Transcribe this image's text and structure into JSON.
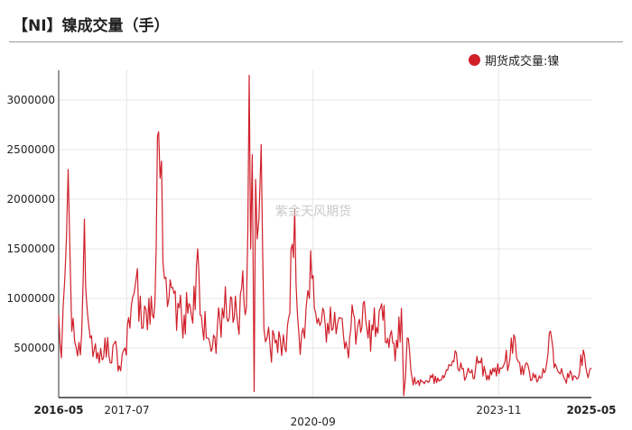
{
  "title": "【NI】镍成交量（手）",
  "watermark": "紫金天风期货",
  "colors": {
    "series": "#d0202a",
    "grid": "#e6e6e6",
    "axis": "#333333"
  },
  "chart_data": {
    "type": "line",
    "xlabel": "",
    "ylabel": "",
    "legend_position": "top-right",
    "grid": true,
    "xlim": [
      "2016-05-03",
      "2025-05-30"
    ],
    "ylim": [
      0,
      3300000
    ],
    "yticks": [
      500000,
      1000000,
      1500000,
      2000000,
      2500000,
      3000000
    ],
    "ytick_labels": [
      "500000",
      "1000000",
      "1500000",
      "2000000",
      "2500000",
      "3000000"
    ],
    "xticks": [
      {
        "date": "2016-05-03",
        "label": "2016-05",
        "bold": true,
        "row": 1
      },
      {
        "date": "2017-07-01",
        "label": "2017-07",
        "bold": false,
        "row": 1
      },
      {
        "date": "2020-09-01",
        "label": "2020-09",
        "bold": false,
        "row": 2
      },
      {
        "date": "2023-11-01",
        "label": "2023-11",
        "bold": false,
        "row": 1
      },
      {
        "date": "2025-05-30",
        "label": "2025-05",
        "bold": true,
        "row": 1
      }
    ],
    "series": [
      {
        "name": "期货成交量:镍",
        "x": [
          "2016-05-03",
          "2016-05-20",
          "2016-06-10",
          "2016-07-01",
          "2016-07-15",
          "2016-08-01",
          "2016-08-20",
          "2016-09-15",
          "2016-10-10",
          "2016-11-01",
          "2016-11-15",
          "2016-12-10",
          "2017-01-10",
          "2017-02-15",
          "2017-03-20",
          "2017-04-15",
          "2017-05-15",
          "2017-06-20",
          "2017-07-20",
          "2017-08-15",
          "2017-09-05",
          "2017-10-10",
          "2017-11-15",
          "2017-12-15",
          "2018-01-15",
          "2018-02-20",
          "2018-03-20",
          "2018-04-20",
          "2018-05-15",
          "2018-06-15",
          "2018-07-15",
          "2018-08-15",
          "2018-09-15",
          "2018-10-15",
          "2018-11-15",
          "2018-12-15",
          "2019-01-15",
          "2019-02-15",
          "2019-03-15",
          "2019-04-15",
          "2019-05-15",
          "2019-06-15",
          "2019-07-15",
          "2019-08-01",
          "2019-08-10",
          "2019-08-20",
          "2019-09-01",
          "2019-09-10",
          "2019-09-20",
          "2019-10-01",
          "2019-10-15",
          "2019-11-01",
          "2019-11-20",
          "2019-12-10",
          "2020-01-10",
          "2020-02-10",
          "2020-03-10",
          "2020-04-10",
          "2020-05-10",
          "2020-06-05",
          "2020-07-01",
          "2020-07-20",
          "2020-08-10",
          "2020-08-25",
          "2020-09-10",
          "2020-10-05",
          "2020-11-01",
          "2020-12-01",
          "2021-01-05",
          "2021-02-01",
          "2021-02-20",
          "2021-03-10",
          "2021-04-10",
          "2021-05-10",
          "2021-06-10",
          "2021-07-10",
          "2021-08-10",
          "2021-09-10",
          "2021-10-10",
          "2021-11-10",
          "2021-12-10",
          "2022-01-10",
          "2022-02-10",
          "2022-03-05",
          "2022-03-20",
          "2022-04-10",
          "2022-05-10",
          "2022-06-10",
          "2022-07-10",
          "2022-08-10",
          "2022-09-10",
          "2022-10-10",
          "2022-11-10",
          "2022-12-10",
          "2023-01-10",
          "2023-02-10",
          "2023-03-10",
          "2023-04-10",
          "2023-05-10",
          "2023-06-10",
          "2023-07-10",
          "2023-08-10",
          "2023-09-10",
          "2023-10-10",
          "2023-11-10",
          "2023-12-10",
          "2024-01-10",
          "2024-02-10",
          "2024-03-10",
          "2024-04-10",
          "2024-05-10",
          "2024-06-10",
          "2024-07-10",
          "2024-08-10",
          "2024-09-10",
          "2024-10-10",
          "2024-11-10",
          "2024-12-10",
          "2025-01-10",
          "2025-02-10",
          "2025-03-10",
          "2025-04-10",
          "2025-05-10",
          "2025-05-30"
        ],
        "values": [
          830000,
          400000,
          1200000,
          2300000,
          1250000,
          800000,
          500000,
          430000,
          1800000,
          800000,
          600000,
          480000,
          350000,
          600000,
          350000,
          550000,
          320000,
          500000,
          700000,
          1050000,
          1300000,
          700000,
          1000000,
          800000,
          2680000,
          1200000,
          1000000,
          1050000,
          950000,
          600000,
          850000,
          750000,
          1500000,
          700000,
          600000,
          500000,
          700000,
          900000,
          800000,
          1000000,
          850000,
          1100000,
          900000,
          3250000,
          1500000,
          2450000,
          60000,
          2200000,
          1600000,
          1800000,
          2550000,
          700000,
          600000,
          500000,
          550000,
          600000,
          500000,
          850000,
          1900000,
          650000,
          700000,
          900000,
          1000000,
          1200000,
          900000,
          800000,
          900000,
          750000,
          700000,
          750000,
          800000,
          620000,
          400000,
          850000,
          750000,
          950000,
          600000,
          680000,
          650000,
          780000,
          600000,
          550000,
          500000,
          900000,
          20000,
          600000,
          200000,
          150000,
          160000,
          170000,
          200000,
          150000,
          180000,
          280000,
          320000,
          450000,
          350000,
          200000,
          250000,
          300000,
          350000,
          250000,
          280000,
          300000,
          300000,
          360000,
          400000,
          600000,
          350000,
          300000,
          250000,
          200000,
          220000,
          250000,
          650000,
          300000,
          250000,
          200000,
          200000,
          220000,
          200000,
          480000,
          200000,
          300000
        ]
      }
    ]
  }
}
